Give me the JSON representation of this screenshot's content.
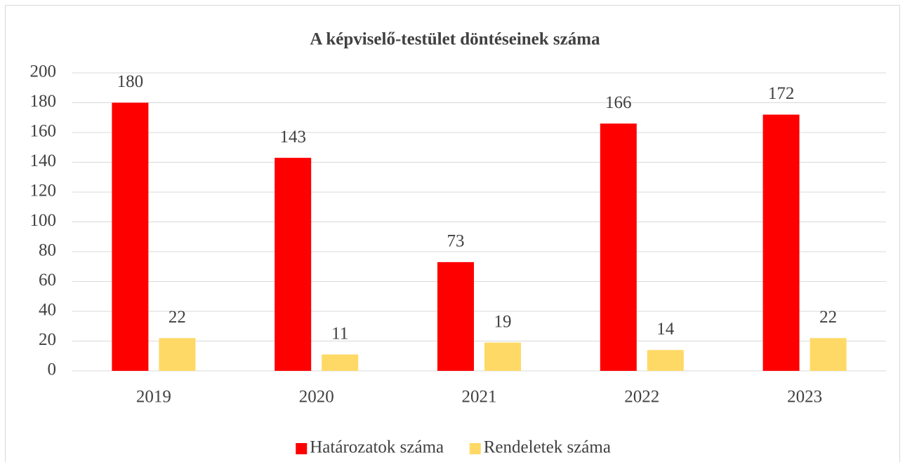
{
  "chart_data": {
    "type": "bar",
    "title": "A képviselő-testület döntéseinek száma",
    "categories": [
      "2019",
      "2020",
      "2021",
      "2022",
      "2023"
    ],
    "series": [
      {
        "name": "Határozatok száma",
        "color": "#ff0000",
        "values": [
          180,
          143,
          73,
          166,
          172
        ]
      },
      {
        "name": "Rendeletek száma",
        "color": "#ffd966",
        "values": [
          22,
          11,
          19,
          14,
          22
        ]
      }
    ],
    "ylim": [
      0,
      200
    ],
    "yticks": [
      0,
      20,
      40,
      60,
      80,
      100,
      120,
      140,
      160,
      180,
      200
    ],
    "grid": true,
    "legend": "bottom"
  }
}
